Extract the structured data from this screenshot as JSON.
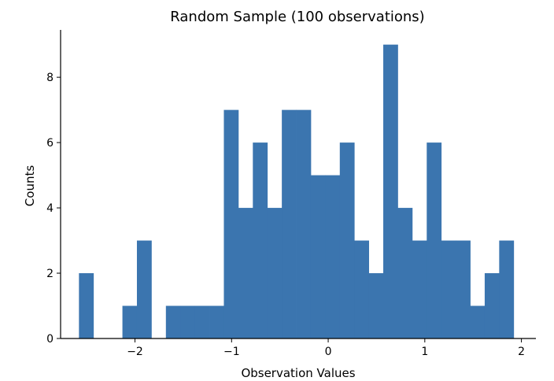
{
  "chart_data": {
    "type": "bar",
    "title": "Random Sample (100 observations)",
    "xlabel": "Observation Values",
    "ylabel": "Counts",
    "bar_color": "#3b75af",
    "bins_start": -2.58,
    "bin_width": 0.15,
    "counts": [
      2,
      0,
      0,
      1,
      3,
      0,
      1,
      1,
      1,
      1,
      7,
      4,
      6,
      4,
      7,
      7,
      5,
      5,
      6,
      3,
      2,
      9,
      4,
      3,
      6,
      3,
      3,
      1,
      2,
      3
    ],
    "xlim": [
      -2.77,
      2.15
    ],
    "ylim": [
      0,
      9.45
    ],
    "xticks": [
      -2,
      -1,
      0,
      1,
      2
    ],
    "xtick_labels": [
      "−2",
      "−1",
      "0",
      "1",
      "2"
    ],
    "yticks": [
      0,
      2,
      4,
      6,
      8
    ],
    "ytick_labels": [
      "0",
      "2",
      "4",
      "6",
      "8"
    ],
    "grid": false
  }
}
